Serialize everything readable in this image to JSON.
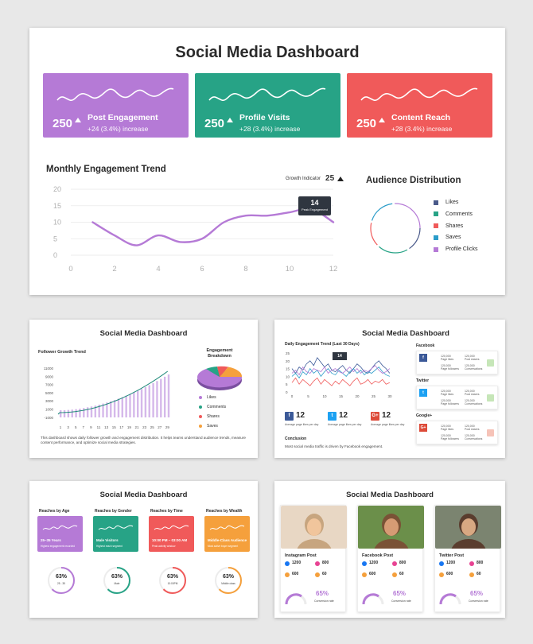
{
  "main": {
    "title": "Social Media Dashboard",
    "cards": [
      {
        "label": "Post Engagement",
        "value": "250",
        "change": "+24 (3.4%) increase",
        "color": "#b57ad6"
      },
      {
        "label": "Profile Visits",
        "value": "250",
        "change": "+28 (3.4%) increase",
        "color": "#27a386"
      },
      {
        "label": "Content Reach",
        "value": "250",
        "change": "+28 (3.4%) increase",
        "color": "#f05a5a"
      }
    ],
    "trend_title": "Monthly Engagement Trend",
    "growth_label": "Growth Indicator",
    "growth_value": "25",
    "tooltip_value": "14",
    "tooltip_label": "Peak Engagement",
    "audience_title": "Audience Distribution",
    "audience_legend": [
      {
        "label": "Likes",
        "color": "#4a5a8a"
      },
      {
        "label": "Comments",
        "color": "#27a386"
      },
      {
        "label": "Shares",
        "color": "#f05a5a"
      },
      {
        "label": "Saves",
        "color": "#2a9cc9"
      },
      {
        "label": "Profile Clicks",
        "color": "#b57ad6"
      }
    ]
  },
  "chart_data": [
    {
      "type": "line",
      "title": "Monthly Engagement Trend",
      "x": [
        1,
        2,
        3,
        4,
        5,
        6,
        7,
        8,
        9,
        10,
        11,
        12
      ],
      "values": [
        10,
        6,
        3,
        6,
        4,
        5,
        10,
        12,
        12,
        13,
        14,
        10
      ],
      "xlim": [
        0,
        12
      ],
      "ylim": [
        0,
        20
      ],
      "xticks": [
        0,
        2,
        4,
        6,
        8,
        10,
        12
      ],
      "yticks": [
        0,
        5,
        10,
        15,
        20
      ],
      "grid": true
    }
  ],
  "thumb1": {
    "title": "Social Media Dashboard",
    "growth_title": "Follower Growth Trend",
    "yticks": [
      "11000",
      "9000",
      "7000",
      "5000",
      "3000",
      "1000",
      "-1000"
    ],
    "xticks": [
      "1",
      "3",
      "5",
      "7",
      "9",
      "11",
      "13",
      "15",
      "17",
      "19",
      "21",
      "23",
      "25",
      "27",
      "29"
    ],
    "breakdown_title": "Engagement Breakdown",
    "legend": [
      {
        "label": "Likes",
        "color": "#b57ad6"
      },
      {
        "label": "Comments",
        "color": "#27a386"
      },
      {
        "label": "Shares",
        "color": "#f05a5a"
      },
      {
        "label": "Saves",
        "color": "#f5a03c"
      }
    ],
    "note": "This dashboard shows daily follower growth and engagement distribution. It helps teams understand audience trends, measure content performance, and optimize social media strategies."
  },
  "thumb2": {
    "title": "Social Media Dashboard",
    "trend_title": "Daily Engagement Trend (Last 30 Days)",
    "yticks": [
      "25",
      "20",
      "15",
      "10",
      "5",
      "0"
    ],
    "xticks": [
      "0",
      "5",
      "10",
      "15",
      "20",
      "25",
      "30"
    ],
    "tooltip": "14",
    "platforms": [
      {
        "name": "Facebook",
        "value": "12",
        "color": "#3b5998",
        "glyph": "f"
      },
      {
        "name": "Twitter",
        "value": "12",
        "color": "#1da1f2",
        "glyph": "t"
      },
      {
        "name": "Google+",
        "value": "12",
        "color": "#dd4b39",
        "glyph": "G+"
      }
    ],
    "stat_value": "120,000",
    "stat_cells": [
      "Page likes",
      "Post shares",
      "Page followers",
      "Conversations"
    ],
    "stat_sub": "Average page likes per day",
    "conclusion_title": "Conclusion",
    "conclusion_text": "Most social media traffic is driven by Facebook engagement."
  },
  "thumb3": {
    "title": "Social Media Dashboard",
    "cols": [
      {
        "heading": "Reaches by Age",
        "card": "25–35 Years",
        "sub": "Highest engagement recorded",
        "pct": "63%",
        "color": "#b57ad6"
      },
      {
        "heading": "Reaches by Gender",
        "card": "Male Visitors",
        "sub": "Highest reach segment",
        "pct": "63%",
        "color": "#27a386"
      },
      {
        "heading": "Reaches by Time",
        "card": "10:00 PM – 03:00 AM",
        "sub": "Peak activity window",
        "pct": "63%",
        "color": "#f05a5a"
      },
      {
        "heading": "Reaches by Wealth",
        "card": "Middle-Class Audience",
        "sub": "Most active buyer segment",
        "pct": "63%",
        "color": "#f5a03c"
      }
    ],
    "gauge_labels": [
      "25 - 35",
      "Male",
      "10:00PM",
      "Middle class"
    ]
  },
  "thumb4": {
    "title": "Social Media Dashboard",
    "posts": [
      {
        "name": "Instagram Post",
        "likes": "1200",
        "views": "800",
        "pct": "65%",
        "color": "#b57ad6"
      },
      {
        "name": "Facebook Post",
        "likes": "1200",
        "views": "800",
        "pct": "65%",
        "color": "#b57ad6"
      },
      {
        "name": "Twitter Post",
        "likes": "1200",
        "views": "800",
        "pct": "65%",
        "color": "#b57ad6"
      }
    ],
    "small_values": [
      "600",
      "60"
    ],
    "conversion_label": "Conversion rate"
  }
}
